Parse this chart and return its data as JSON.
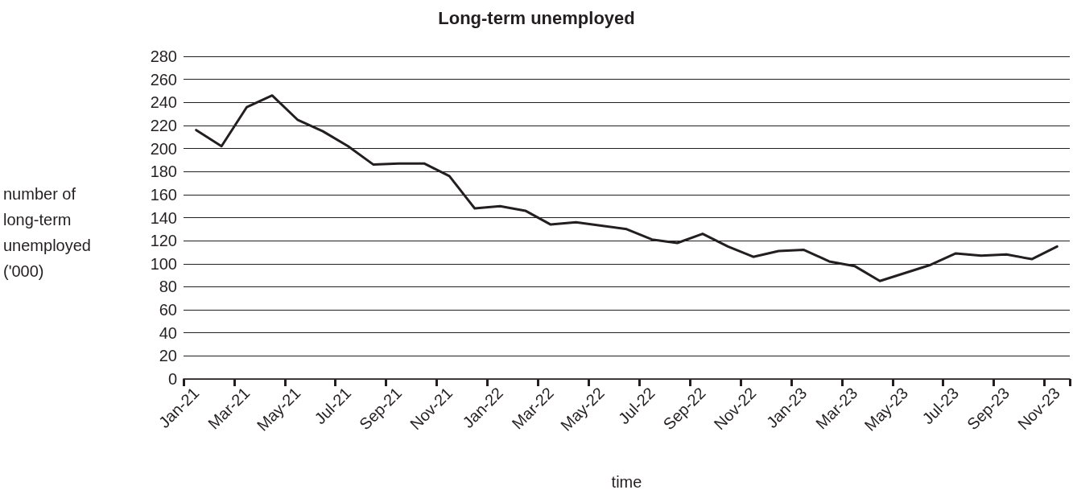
{
  "chart_data": {
    "type": "line",
    "title": "Long-term unemployed",
    "xlabel": "time",
    "ylabel": "number of long-term unemployed ('000)",
    "categories": [
      "Jan-21",
      null,
      "Mar-21",
      null,
      "May-21",
      null,
      "Jul-21",
      null,
      "Sep-21",
      null,
      "Nov-21",
      null,
      "Jan-22",
      null,
      "Mar-22",
      null,
      "May-22",
      null,
      "Jul-22",
      null,
      "Sep-22",
      null,
      "Nov-22",
      null,
      "Jan-23",
      null,
      "Mar-23",
      null,
      "May-23",
      null,
      "Jul-23",
      null,
      "Sep-23",
      null,
      "Nov-23"
    ],
    "series": [
      {
        "color": "#231f20",
        "values": [
          216,
          202,
          236,
          246,
          225,
          215,
          202,
          186,
          187,
          187,
          176,
          148,
          150,
          146,
          134,
          136,
          133,
          130,
          121,
          118,
          126,
          115,
          106,
          111,
          112,
          102,
          98,
          85,
          92,
          99,
          109,
          107,
          108,
          104,
          115
        ]
      }
    ],
    "ylim": [
      0,
      280
    ],
    "yticks": [
      0,
      20,
      40,
      60,
      80,
      100,
      120,
      140,
      160,
      180,
      200,
      220,
      240,
      260,
      280
    ],
    "grid": "y",
    "marker": "none",
    "line_style": "solid"
  }
}
